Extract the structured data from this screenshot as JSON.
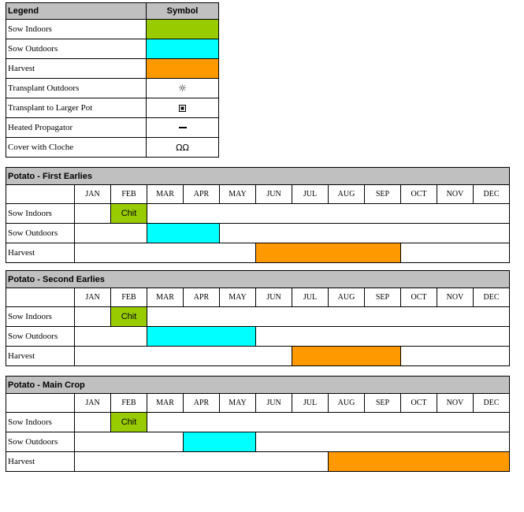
{
  "colors": {
    "sow_indoors": "#99cc00",
    "sow_outdoors": "#00ffff",
    "harvest": "#ff9900",
    "header_bg": "#c0c0c0"
  },
  "legend": {
    "header": {
      "label": "Legend",
      "symbol": "Symbol"
    },
    "rows": [
      {
        "label": "Sow Indoors",
        "symbol_type": "color",
        "color": "#99cc00"
      },
      {
        "label": "Sow Outdoors",
        "symbol_type": "color",
        "color": "#00ffff"
      },
      {
        "label": "Harvest",
        "symbol_type": "color",
        "color": "#ff9900"
      },
      {
        "label": "Transplant Outdoors",
        "symbol_type": "icon",
        "icon": "sun-icon",
        "glyph": "☼"
      },
      {
        "label": "Transplant to Larger Pot",
        "symbol_type": "icon",
        "icon": "pot-icon"
      },
      {
        "label": "Heated Propagator",
        "symbol_type": "icon",
        "icon": "dash-icon"
      },
      {
        "label": "Cover with Cloche",
        "symbol_type": "icon",
        "icon": "omega-icon",
        "glyph": "ΩΩ"
      }
    ]
  },
  "months": [
    "JAN",
    "FEB",
    "MAR",
    "APR",
    "MAY",
    "JUN",
    "JUL",
    "AUG",
    "SEP",
    "OCT",
    "NOV",
    "DEC"
  ],
  "crops": [
    {
      "title": "Potato - First Earlies",
      "rows": [
        {
          "label": "Sow Indoors",
          "start": 2,
          "end": 2,
          "color": "#99cc00",
          "text": "Chit"
        },
        {
          "label": "Sow Outdoors",
          "start": 3,
          "end": 4,
          "color": "#00ffff",
          "text": ""
        },
        {
          "label": "Harvest",
          "start": 6,
          "end": 9,
          "color": "#ff9900",
          "text": ""
        }
      ]
    },
    {
      "title": "Potato - Second Earlies",
      "rows": [
        {
          "label": "Sow Indoors",
          "start": 2,
          "end": 2,
          "color": "#99cc00",
          "text": "Chit"
        },
        {
          "label": "Sow Outdoors",
          "start": 3,
          "end": 5,
          "color": "#00ffff",
          "text": ""
        },
        {
          "label": "Harvest",
          "start": 7,
          "end": 9,
          "color": "#ff9900",
          "text": ""
        }
      ]
    },
    {
      "title": "Potato - Main Crop",
      "rows": [
        {
          "label": "Sow Indoors",
          "start": 2,
          "end": 2,
          "color": "#99cc00",
          "text": "Chit"
        },
        {
          "label": "Sow Outdoors",
          "start": 4,
          "end": 5,
          "color": "#00ffff",
          "text": ""
        },
        {
          "label": "Harvest",
          "start": 8,
          "end": 12,
          "color": "#ff9900",
          "text": ""
        }
      ]
    }
  ]
}
